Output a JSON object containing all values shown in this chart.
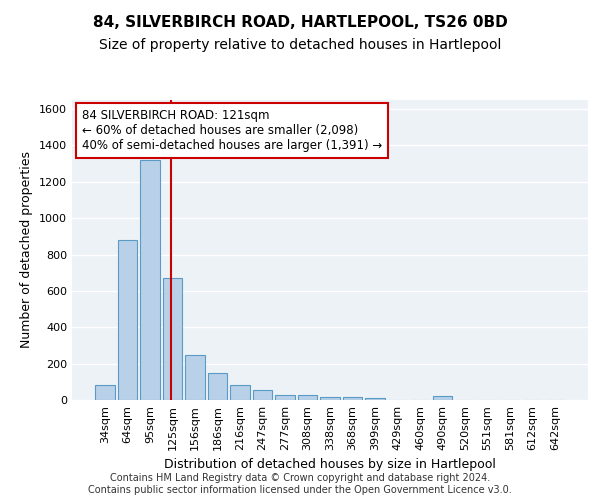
{
  "title": "84, SILVERBIRCH ROAD, HARTLEPOOL, TS26 0BD",
  "subtitle": "Size of property relative to detached houses in Hartlepool",
  "xlabel": "Distribution of detached houses by size in Hartlepool",
  "ylabel": "Number of detached properties",
  "categories": [
    "34sqm",
    "64sqm",
    "95sqm",
    "125sqm",
    "156sqm",
    "186sqm",
    "216sqm",
    "247sqm",
    "277sqm",
    "308sqm",
    "338sqm",
    "368sqm",
    "399sqm",
    "429sqm",
    "460sqm",
    "490sqm",
    "520sqm",
    "551sqm",
    "581sqm",
    "612sqm",
    "642sqm"
  ],
  "values": [
    80,
    880,
    1320,
    670,
    245,
    148,
    85,
    55,
    25,
    28,
    18,
    15,
    13,
    0,
    0,
    22,
    0,
    0,
    0,
    0,
    0
  ],
  "bar_color": "#b8d0e8",
  "bar_edge_color": "#5a9ac5",
  "vline_color": "#cc0000",
  "vline_position": 2.925,
  "annotation_text": "84 SILVERBIRCH ROAD: 121sqm\n← 60% of detached houses are smaller (2,098)\n40% of semi-detached houses are larger (1,391) →",
  "annotation_box_color": "#ffffff",
  "annotation_box_edge_color": "#cc0000",
  "ylim": [
    0,
    1650
  ],
  "yticks": [
    0,
    200,
    400,
    600,
    800,
    1000,
    1200,
    1400,
    1600
  ],
  "footer": "Contains HM Land Registry data © Crown copyright and database right 2024.\nContains public sector information licensed under the Open Government Licence v3.0.",
  "background_color": "#edf2f7",
  "grid_color": "#ffffff",
  "title_fontsize": 11,
  "subtitle_fontsize": 10,
  "axis_label_fontsize": 9,
  "tick_fontsize": 8,
  "annotation_fontsize": 8.5,
  "footer_fontsize": 7
}
